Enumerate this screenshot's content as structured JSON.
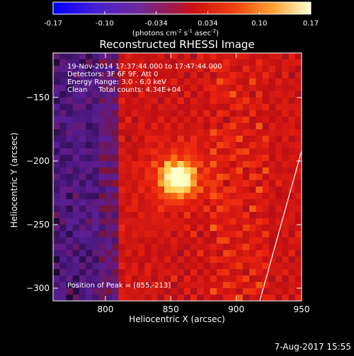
{
  "colorbar": {
    "ticks": [
      "-0.17",
      "-0.10",
      "-0.034",
      "0.034",
      "0.10",
      "0.17"
    ],
    "unit_main": "(photons cm",
    "unit_sup1": "-2",
    "unit_mid1": " s",
    "unit_sup2": "-1",
    "unit_mid2": " asec",
    "unit_sup3": "-2",
    "unit_end": ")"
  },
  "chart_data": {
    "type": "heatmap",
    "title": "Reconstructed RHESSI Image",
    "xlabel": "Heliocentric X (arcsec)",
    "ylabel": "Heliocentric Y (arcsec)",
    "xlim": [
      760,
      950
    ],
    "ylim": [
      -310,
      -115
    ],
    "x_ticks": [
      800,
      850,
      900,
      950
    ],
    "x_tick_labels": [
      "800",
      "850",
      "900",
      "950"
    ],
    "y_ticks": [
      -150,
      -200,
      -250,
      -300
    ],
    "y_tick_labels": [
      "−150",
      "−200",
      "−250",
      "−300"
    ],
    "color_range": [
      -0.17,
      0.17
    ],
    "colormap": "rhessi",
    "limb_line": [
      [
        918,
        -310
      ],
      [
        950,
        -192
      ]
    ],
    "peak_position": [
      855,
      -213
    ],
    "info_lines": [
      "19-Nov-2014 17:37:44.000 to 17:47:44.000",
      "Detectors: 3F 6F 9F, Att 0",
      "Energy Range: 3.0 - 6.0 keV",
      "Clean     Total counts: 4.34E+04"
    ],
    "peak_text": "Position of Peak = [855,-213]"
  },
  "footer_date": "7-Aug-2017 15:55"
}
